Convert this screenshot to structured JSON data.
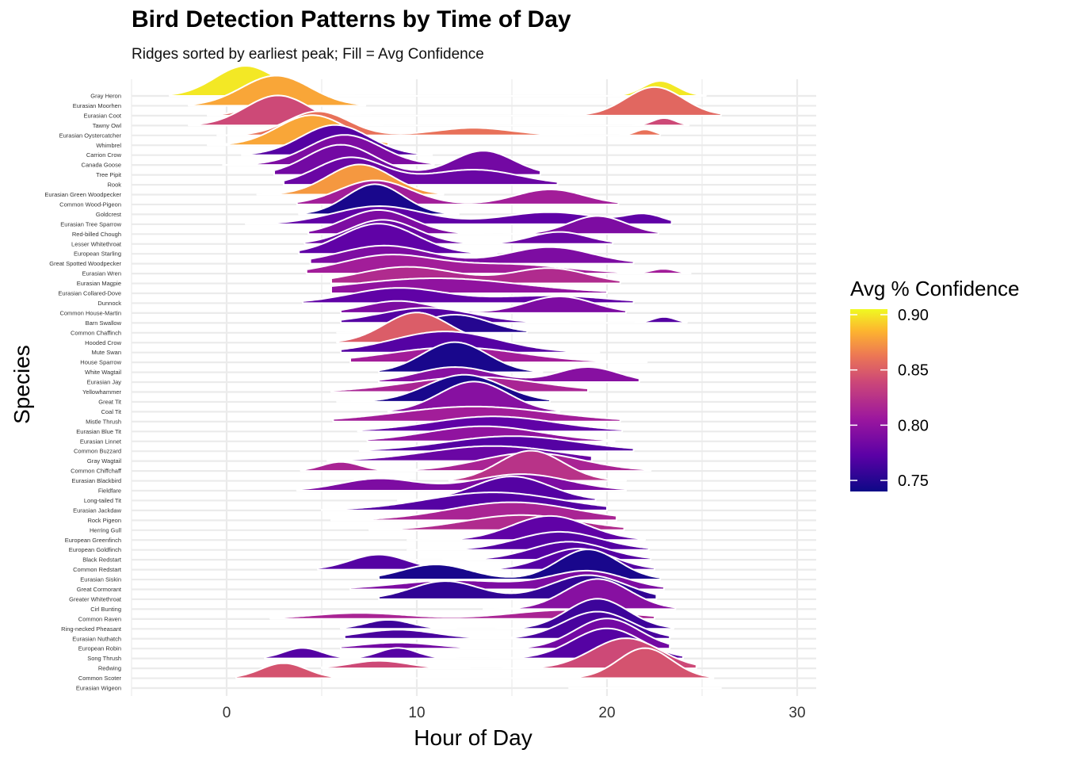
{
  "chart_data": {
    "type": "ridgeline",
    "title": "Bird Detection Patterns by Time of Day",
    "subtitle": "Ridges sorted by earliest peak; Fill = Avg Confidence",
    "xlabel": "Hour of Day",
    "ylabel": "Species",
    "xlim": [
      -5,
      31
    ],
    "xticks": [
      0,
      10,
      20,
      30
    ],
    "grid": true,
    "legend": {
      "title": "Avg % Confidence",
      "position": "right",
      "range": [
        0.74,
        0.905
      ],
      "ticks": [
        0.9,
        0.85,
        0.8,
        0.75
      ],
      "tick_labels": [
        "0.90",
        "0.85",
        "0.80",
        "0.75"
      ]
    },
    "species": [
      {
        "name": "Gray Heron",
        "confidence": 0.9,
        "range": [
          -3,
          25.2
        ],
        "peaks": [
          {
            "mu": 1,
            "sd": 1.6,
            "h": 1
          },
          {
            "mu": 22.8,
            "sd": 0.9,
            "h": 0.5
          }
        ]
      },
      {
        "name": "Eurasian Moorhen",
        "confidence": 0.88,
        "range": [
          -2,
          7.3
        ],
        "peaks": [
          {
            "mu": 2.6,
            "sd": 1.8,
            "h": 1
          }
        ]
      },
      {
        "name": "Eurasian Coot",
        "confidence": 0.855,
        "range": [
          -1,
          26
        ],
        "peaks": [
          {
            "mu": 2.8,
            "sd": 1.4,
            "h": 0.55
          },
          {
            "mu": 22.5,
            "sd": 1.5,
            "h": 0.95
          }
        ]
      },
      {
        "name": "Tawny Owl",
        "confidence": 0.84,
        "range": [
          -2,
          24.3
        ],
        "peaks": [
          {
            "mu": 2.7,
            "sd": 1.7,
            "h": 1
          },
          {
            "mu": 23,
            "sd": 0.6,
            "h": 0.25
          }
        ]
      },
      {
        "name": "Eurasian Oystercatcher",
        "confidence": 0.86,
        "range": [
          -0.5,
          22.8
        ],
        "peaks": [
          {
            "mu": 4.8,
            "sd": 1.6,
            "h": 0.8
          },
          {
            "mu": 13,
            "sd": 2,
            "h": 0.25
          },
          {
            "mu": 22,
            "sd": 0.5,
            "h": 0.2
          }
        ]
      },
      {
        "name": "Whimbrel",
        "confidence": 0.88,
        "range": [
          -1,
          8.5
        ],
        "peaks": [
          {
            "mu": 4.5,
            "sd": 1.8,
            "h": 1
          }
        ]
      },
      {
        "name": "Carrion Crow",
        "confidence": 0.77,
        "range": [
          0.8,
          10.8
        ],
        "peaks": [
          {
            "mu": 5.7,
            "sd": 1.8,
            "h": 1
          }
        ]
      },
      {
        "name": "Canada Goose",
        "confidence": 0.79,
        "range": [
          -0.2,
          10.9
        ],
        "peaks": [
          {
            "mu": 6.2,
            "sd": 1.9,
            "h": 1
          }
        ]
      },
      {
        "name": "Tree Pipit",
        "confidence": 0.785,
        "range": [
          2.5,
          16.5
        ],
        "peaks": [
          {
            "mu": 6,
            "sd": 1.8,
            "h": 1
          },
          {
            "mu": 13.5,
            "sd": 1.6,
            "h": 0.8
          }
        ]
      },
      {
        "name": "Rook",
        "confidence": 0.78,
        "range": [
          3,
          17.4
        ],
        "peaks": [
          {
            "mu": 6.5,
            "sd": 1.8,
            "h": 0.9
          },
          {
            "mu": 13,
            "sd": 2.4,
            "h": 0.5
          }
        ]
      },
      {
        "name": "Eurasian Green Woodpecker",
        "confidence": 0.875,
        "range": [
          1.6,
          11.4
        ],
        "peaks": [
          {
            "mu": 7,
            "sd": 1.7,
            "h": 1
          }
        ]
      },
      {
        "name": "Common Wood-Pigeon",
        "confidence": 0.81,
        "range": [
          3.7,
          20.6
        ],
        "peaks": [
          {
            "mu": 7.8,
            "sd": 1.9,
            "h": 0.8
          },
          {
            "mu": 17,
            "sd": 1.8,
            "h": 0.5
          }
        ]
      },
      {
        "name": "Goldcrest",
        "confidence": 0.745,
        "range": [
          3.8,
          12.2
        ],
        "peaks": [
          {
            "mu": 7.8,
            "sd": 1.5,
            "h": 1
          }
        ]
      },
      {
        "name": "Eurasian Tree Sparrow",
        "confidence": 0.775,
        "range": [
          1,
          23.4
        ],
        "peaks": [
          {
            "mu": 8,
            "sd": 2.4,
            "h": 0.6
          },
          {
            "mu": 17,
            "sd": 2.5,
            "h": 0.4
          },
          {
            "mu": 22,
            "sd": 1,
            "h": 0.3
          }
        ]
      },
      {
        "name": "Red-billed Chough",
        "confidence": 0.79,
        "range": [
          4.3,
          22.7
        ],
        "peaks": [
          {
            "mu": 8,
            "sd": 1.8,
            "h": 0.8
          },
          {
            "mu": 19.5,
            "sd": 1.5,
            "h": 0.6
          }
        ]
      },
      {
        "name": "Lesser Whitethroat",
        "confidence": 0.78,
        "range": [
          4.1,
          20.3
        ],
        "peaks": [
          {
            "mu": 8.2,
            "sd": 1.8,
            "h": 0.8
          },
          {
            "mu": 17.5,
            "sd": 1.5,
            "h": 0.4
          }
        ]
      },
      {
        "name": "European Starling",
        "confidence": 0.775,
        "range": [
          3.8,
          14.2
        ],
        "peaks": [
          {
            "mu": 8,
            "sd": 2,
            "h": 1
          }
        ]
      },
      {
        "name": "Great Spotted Woodpecker",
        "confidence": 0.79,
        "range": [
          4.4,
          21.4
        ],
        "peaks": [
          {
            "mu": 8.3,
            "sd": 2.4,
            "h": 0.6
          },
          {
            "mu": 17,
            "sd": 2.2,
            "h": 0.55
          }
        ]
      },
      {
        "name": "Eurasian Wren",
        "confidence": 0.81,
        "range": [
          4.2,
          24.4
        ],
        "peaks": [
          {
            "mu": 8.5,
            "sd": 2.5,
            "h": 0.6
          },
          {
            "mu": 15,
            "sd": 3,
            "h": 0.3
          },
          {
            "mu": 23,
            "sd": 0.6,
            "h": 0.15
          }
        ]
      },
      {
        "name": "Eurasian Magpie",
        "confidence": 0.82,
        "range": [
          5.5,
          20.7
        ],
        "peaks": [
          {
            "mu": 9.5,
            "sd": 2.6,
            "h": 0.55
          },
          {
            "mu": 17,
            "sd": 2,
            "h": 0.5
          }
        ]
      },
      {
        "name": "Eurasian Collared-Dove",
        "confidence": 0.8,
        "range": [
          5.5,
          20
        ],
        "peaks": [
          {
            "mu": 11,
            "sd": 4.5,
            "h": 0.5
          }
        ]
      },
      {
        "name": "Dunnock",
        "confidence": 0.775,
        "range": [
          4,
          21.4
        ],
        "peaks": [
          {
            "mu": 9,
            "sd": 2.5,
            "h": 0.5
          },
          {
            "mu": 17,
            "sd": 3,
            "h": 0.25
          }
        ]
      },
      {
        "name": "Common House-Martin",
        "confidence": 0.79,
        "range": [
          6,
          21
        ],
        "peaks": [
          {
            "mu": 9,
            "sd": 1.8,
            "h": 0.4
          },
          {
            "mu": 17.5,
            "sd": 1.8,
            "h": 0.55
          }
        ]
      },
      {
        "name": "Barn Swallow",
        "confidence": 0.77,
        "range": [
          6,
          24.2
        ],
        "peaks": [
          {
            "mu": 10.5,
            "sd": 2.5,
            "h": 0.5
          },
          {
            "mu": 23,
            "sd": 0.6,
            "h": 0.2
          }
        ]
      },
      {
        "name": "Common Chaffinch",
        "confidence": 0.75,
        "range": [
          5.8,
          15.8
        ],
        "peaks": [
          {
            "mu": 12,
            "sd": 1.8,
            "h": 0.6
          }
        ]
      },
      {
        "name": "Hooded Crow",
        "confidence": 0.85,
        "range": [
          5.8,
          13
        ],
        "peaks": [
          {
            "mu": 10,
            "sd": 1.7,
            "h": 1
          }
        ]
      },
      {
        "name": "Mute Swan",
        "confidence": 0.77,
        "range": [
          6,
          19.6
        ],
        "peaks": [
          {
            "mu": 11.5,
            "sd": 2.8,
            "h": 0.7
          }
        ]
      },
      {
        "name": "House Sparrow",
        "confidence": 0.81,
        "range": [
          6.5,
          22.1
        ],
        "peaks": [
          {
            "mu": 12,
            "sd": 3.5,
            "h": 0.5
          }
        ]
      },
      {
        "name": "White Wagtail",
        "confidence": 0.745,
        "range": [
          8,
          16.6
        ],
        "peaks": [
          {
            "mu": 12,
            "sd": 1.7,
            "h": 1
          }
        ]
      },
      {
        "name": "Eurasian Jay",
        "confidence": 0.795,
        "range": [
          8,
          21.7
        ],
        "peaks": [
          {
            "mu": 12,
            "sd": 2,
            "h": 0.5
          },
          {
            "mu": 19,
            "sd": 1.6,
            "h": 0.5
          }
        ]
      },
      {
        "name": "Yellowhammer",
        "confidence": 0.815,
        "range": [
          5.5,
          19
        ],
        "peaks": [
          {
            "mu": 13,
            "sd": 3.5,
            "h": 0.5
          }
        ]
      },
      {
        "name": "Great Tit",
        "confidence": 0.745,
        "range": [
          5.8,
          17
        ],
        "peaks": [
          {
            "mu": 12.5,
            "sd": 2,
            "h": 0.9
          }
        ]
      },
      {
        "name": "Coal Tit",
        "confidence": 0.795,
        "range": [
          8.5,
          17.5
        ],
        "peaks": [
          {
            "mu": 13,
            "sd": 1.8,
            "h": 1
          }
        ]
      },
      {
        "name": "Mistle Thrush",
        "confidence": 0.81,
        "range": [
          5.6,
          20.7
        ],
        "peaks": [
          {
            "mu": 13,
            "sd": 4,
            "h": 0.5
          }
        ]
      },
      {
        "name": "Eurasian Blue Tit",
        "confidence": 0.775,
        "range": [
          6.9,
          20.8
        ],
        "peaks": [
          {
            "mu": 14,
            "sd": 3.3,
            "h": 0.5
          }
        ]
      },
      {
        "name": "Eurasian Linnet",
        "confidence": 0.8,
        "range": [
          7.4,
          20.4
        ],
        "peaks": [
          {
            "mu": 13.5,
            "sd": 3,
            "h": 0.5
          }
        ]
      },
      {
        "name": "Common Buzzard",
        "confidence": 0.77,
        "range": [
          7,
          21.4
        ],
        "peaks": [
          {
            "mu": 15,
            "sd": 3.5,
            "h": 0.5
          }
        ]
      },
      {
        "name": "Gray Wagtail",
        "confidence": 0.78,
        "range": [
          5.3,
          19.2
        ],
        "peaks": [
          {
            "mu": 14,
            "sd": 3.5,
            "h": 0.5
          }
        ]
      },
      {
        "name": "Common Chiffchaff",
        "confidence": 0.815,
        "range": [
          3.9,
          22.3
        ],
        "peaks": [
          {
            "mu": 6,
            "sd": 1,
            "h": 0.3
          },
          {
            "mu": 16,
            "sd": 2.7,
            "h": 0.6
          }
        ]
      },
      {
        "name": "Eurasian Blackbird",
        "confidence": 0.825,
        "range": [
          11.7,
          21
        ],
        "peaks": [
          {
            "mu": 16,
            "sd": 1.7,
            "h": 1
          }
        ]
      },
      {
        "name": "Fieldfare",
        "confidence": 0.79,
        "range": [
          3.7,
          21
        ],
        "peaks": [
          {
            "mu": 8,
            "sd": 2,
            "h": 0.4
          },
          {
            "mu": 15.5,
            "sd": 2.5,
            "h": 0.55
          }
        ]
      },
      {
        "name": "Long-tailed Tit",
        "confidence": 0.77,
        "range": [
          9,
          19.4
        ],
        "peaks": [
          {
            "mu": 15,
            "sd": 2,
            "h": 0.8
          }
        ]
      },
      {
        "name": "Eurasian Jackdaw",
        "confidence": 0.77,
        "range": [
          5,
          20
        ],
        "peaks": [
          {
            "mu": 14,
            "sd": 3.5,
            "h": 0.6
          }
        ]
      },
      {
        "name": "Rock Pigeon",
        "confidence": 0.815,
        "range": [
          5.5,
          20.5
        ],
        "peaks": [
          {
            "mu": 15,
            "sd": 3.3,
            "h": 0.6
          }
        ]
      },
      {
        "name": "Herring Gull",
        "confidence": 0.82,
        "range": [
          7.5,
          20.9
        ],
        "peaks": [
          {
            "mu": 15.5,
            "sd": 3,
            "h": 0.5
          }
        ]
      },
      {
        "name": "European Greenfinch",
        "confidence": 0.775,
        "range": [
          9.5,
          22
        ],
        "peaks": [
          {
            "mu": 17,
            "sd": 2,
            "h": 0.8
          }
        ]
      },
      {
        "name": "European Goldfinch",
        "confidence": 0.77,
        "range": [
          9.5,
          22.2
        ],
        "peaks": [
          {
            "mu": 17.5,
            "sd": 2.2,
            "h": 0.6
          }
        ]
      },
      {
        "name": "Black Redstart",
        "confidence": 0.77,
        "range": [
          9.5,
          22.3
        ],
        "peaks": [
          {
            "mu": 18,
            "sd": 2,
            "h": 0.6
          }
        ]
      },
      {
        "name": "Common Redstart",
        "confidence": 0.77,
        "range": [
          4.8,
          22.5
        ],
        "peaks": [
          {
            "mu": 8,
            "sd": 1.5,
            "h": 0.5
          },
          {
            "mu": 18.5,
            "sd": 1.8,
            "h": 0.7
          }
        ]
      },
      {
        "name": "Eurasian Siskin",
        "confidence": 0.745,
        "range": [
          8,
          22.8
        ],
        "peaks": [
          {
            "mu": 11,
            "sd": 1.8,
            "h": 0.5
          },
          {
            "mu": 19,
            "sd": 1.6,
            "h": 1
          }
        ]
      },
      {
        "name": "Great Cormorant",
        "confidence": 0.79,
        "range": [
          6.5,
          23
        ],
        "peaks": [
          {
            "mu": 12,
            "sd": 3,
            "h": 0.3
          },
          {
            "mu": 19,
            "sd": 2,
            "h": 0.6
          }
        ]
      },
      {
        "name": "Greater Whitethroat",
        "confidence": 0.755,
        "range": [
          8,
          22.6
        ],
        "peaks": [
          {
            "mu": 11.5,
            "sd": 1.8,
            "h": 0.6
          },
          {
            "mu": 19,
            "sd": 2,
            "h": 0.8
          }
        ]
      },
      {
        "name": "Cirl Bunting",
        "confidence": 0.795,
        "range": [
          13.5,
          23.6
        ],
        "peaks": [
          {
            "mu": 19.5,
            "sd": 1.7,
            "h": 1
          }
        ]
      },
      {
        "name": "Common Raven",
        "confidence": 0.815,
        "range": [
          2.3,
          22.5
        ],
        "peaks": [
          {
            "mu": 7,
            "sd": 2.5,
            "h": 0.2
          },
          {
            "mu": 18,
            "sd": 3,
            "h": 0.3
          }
        ]
      },
      {
        "name": "Ring-necked Pheasant",
        "confidence": 0.76,
        "range": [
          6,
          23.5
        ],
        "peaks": [
          {
            "mu": 8.5,
            "sd": 1.2,
            "h": 0.3
          },
          {
            "mu": 19.5,
            "sd": 1.6,
            "h": 1
          }
        ]
      },
      {
        "name": "Eurasian Nuthatch",
        "confidence": 0.765,
        "range": [
          6.2,
          23.3
        ],
        "peaks": [
          {
            "mu": 9,
            "sd": 2,
            "h": 0.3
          },
          {
            "mu": 19.5,
            "sd": 1.8,
            "h": 0.9
          }
        ]
      },
      {
        "name": "European Robin",
        "confidence": 0.785,
        "range": [
          6,
          23.3
        ],
        "peaks": [
          {
            "mu": 9,
            "sd": 2,
            "h": 0.2
          },
          {
            "mu": 20,
            "sd": 1.7,
            "h": 1
          }
        ]
      },
      {
        "name": "Song Thrush",
        "confidence": 0.77,
        "range": [
          2,
          24
        ],
        "peaks": [
          {
            "mu": 4,
            "sd": 1,
            "h": 0.35
          },
          {
            "mu": 9,
            "sd": 1,
            "h": 0.35
          },
          {
            "mu": 20,
            "sd": 1.8,
            "h": 1
          }
        ]
      },
      {
        "name": "Redwing",
        "confidence": 0.84,
        "range": [
          5,
          24.7
        ],
        "peaks": [
          {
            "mu": 8,
            "sd": 1.5,
            "h": 0.25
          },
          {
            "mu": 21,
            "sd": 1.8,
            "h": 1
          }
        ]
      },
      {
        "name": "Common Scoter",
        "confidence": 0.845,
        "range": [
          0.5,
          25.6
        ],
        "peaks": [
          {
            "mu": 3,
            "sd": 1.2,
            "h": 0.5
          },
          {
            "mu": 22,
            "sd": 1.4,
            "h": 1
          }
        ]
      },
      {
        "name": "Eurasian Wigeon",
        "confidence": 0.85,
        "range": [
          18,
          26
        ],
        "peaks": [
          {
            "mu": 22,
            "sd": 1.4,
            "h": 0
          }
        ]
      }
    ]
  }
}
